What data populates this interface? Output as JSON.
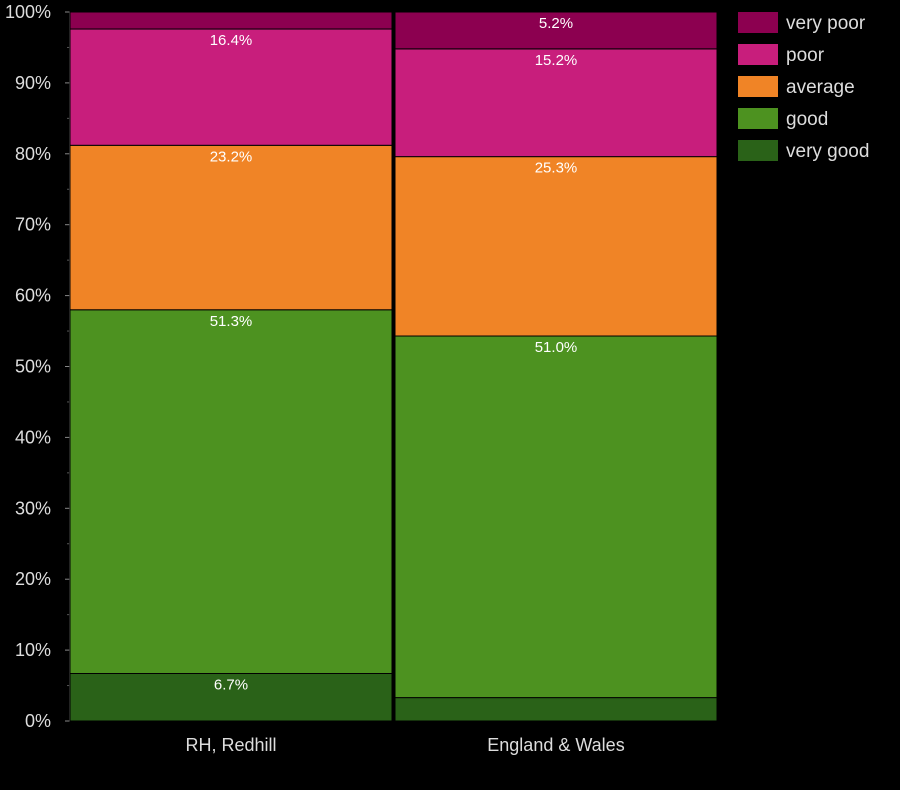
{
  "chart_data": {
    "type": "bar",
    "stacked": true,
    "normalized": true,
    "categories": [
      "RH, Redhill",
      "England & Wales"
    ],
    "series": [
      {
        "name": "very good",
        "color": "#2a6218",
        "values": [
          6.7,
          3.3
        ],
        "labels": [
          "6.7%",
          ""
        ]
      },
      {
        "name": "good",
        "color": "#4d9220",
        "values": [
          51.3,
          51.0
        ],
        "labels": [
          "51.3%",
          "51.0%"
        ]
      },
      {
        "name": "average",
        "color": "#f08426",
        "values": [
          23.2,
          25.3
        ],
        "labels": [
          "23.2%",
          "25.3%"
        ]
      },
      {
        "name": "poor",
        "color": "#c81e7c",
        "values": [
          16.4,
          15.2
        ],
        "labels": [
          "16.4%",
          "15.2%"
        ]
      },
      {
        "name": "very poor",
        "color": "#8c0050",
        "values": [
          2.4,
          5.2
        ],
        "labels": [
          "",
          "5.2%"
        ]
      }
    ],
    "legend_order": [
      "very poor",
      "poor",
      "average",
      "good",
      "very good"
    ],
    "ylim": [
      0,
      100
    ],
    "yticks": [
      "0%",
      "10%",
      "20%",
      "30%",
      "40%",
      "50%",
      "60%",
      "70%",
      "80%",
      "90%",
      "100%"
    ],
    "grid": false,
    "legend_position": "top-right",
    "background": "#000000"
  }
}
